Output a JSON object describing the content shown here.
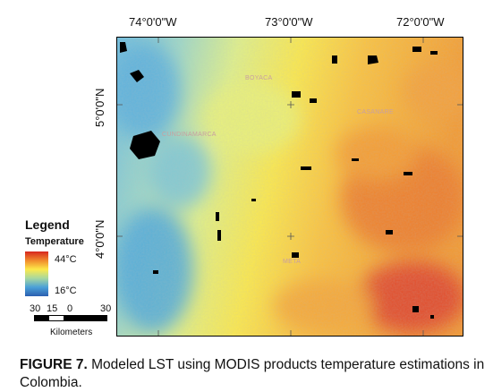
{
  "coordinates": {
    "longitude": [
      "74°0'0\"W",
      "73°0'0\"W",
      "72°0'0\"W"
    ],
    "latitude": [
      "5°0'0\"N",
      "4°0'0\"N"
    ]
  },
  "places": [
    "BOYACA",
    "CUNDINAMARCA",
    "CASANARE",
    "META"
  ],
  "legend": {
    "title": "Legend",
    "subtitle": "Temperature",
    "high": "44°C",
    "low": "16°C",
    "ramp_colors": [
      "#d7261e",
      "#f08a2c",
      "#fde94a",
      "#a7d8a0",
      "#4aa0d8",
      "#2b5fb0"
    ]
  },
  "scale_bar": {
    "ticks": [
      "30",
      "15",
      "0",
      "30"
    ],
    "units": "Kilometers"
  },
  "caption": {
    "label": "FIGURE 7.",
    "text": " Modeled LST using MODIS products temperature estimations in Colombia."
  }
}
